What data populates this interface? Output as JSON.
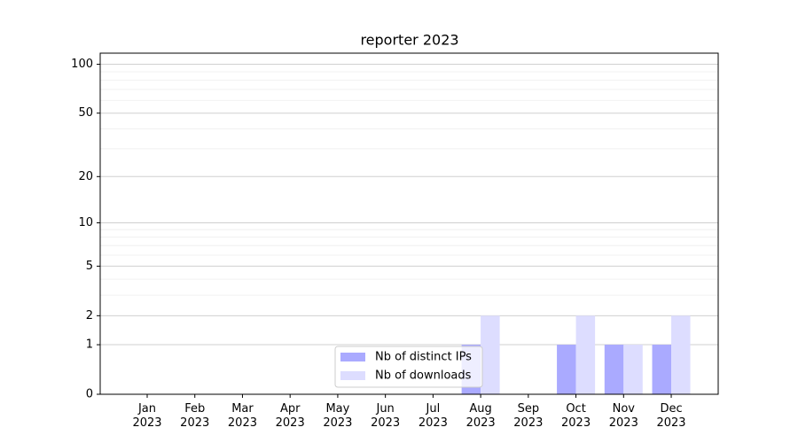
{
  "chart_data": {
    "type": "bar",
    "title": "reporter 2023",
    "categories": [
      [
        "Jan",
        "2023"
      ],
      [
        "Feb",
        "2023"
      ],
      [
        "Mar",
        "2023"
      ],
      [
        "Apr",
        "2023"
      ],
      [
        "May",
        "2023"
      ],
      [
        "Jun",
        "2023"
      ],
      [
        "Jul",
        "2023"
      ],
      [
        "Aug",
        "2023"
      ],
      [
        "Sep",
        "2023"
      ],
      [
        "Oct",
        "2023"
      ],
      [
        "Nov",
        "2023"
      ],
      [
        "Dec",
        "2023"
      ]
    ],
    "series": [
      {
        "name": "Nb of distinct IPs",
        "color": "#aaaaff",
        "values": [
          0,
          0,
          0,
          0,
          0,
          0,
          0,
          1,
          0,
          1,
          1,
          1
        ]
      },
      {
        "name": "Nb of downloads",
        "color": "#ddddff",
        "values": [
          0,
          0,
          0,
          0,
          0,
          0,
          0,
          2,
          0,
          2,
          1,
          2
        ]
      }
    ],
    "yscale": "log1p",
    "ylim": [
      0,
      117
    ],
    "yticks": [
      0,
      1,
      2,
      5,
      10,
      20,
      50,
      100
    ],
    "yminor": [
      3,
      4,
      6,
      7,
      8,
      9,
      30,
      40,
      60,
      70,
      80,
      90
    ],
    "grid": true,
    "legend": "lower center"
  }
}
